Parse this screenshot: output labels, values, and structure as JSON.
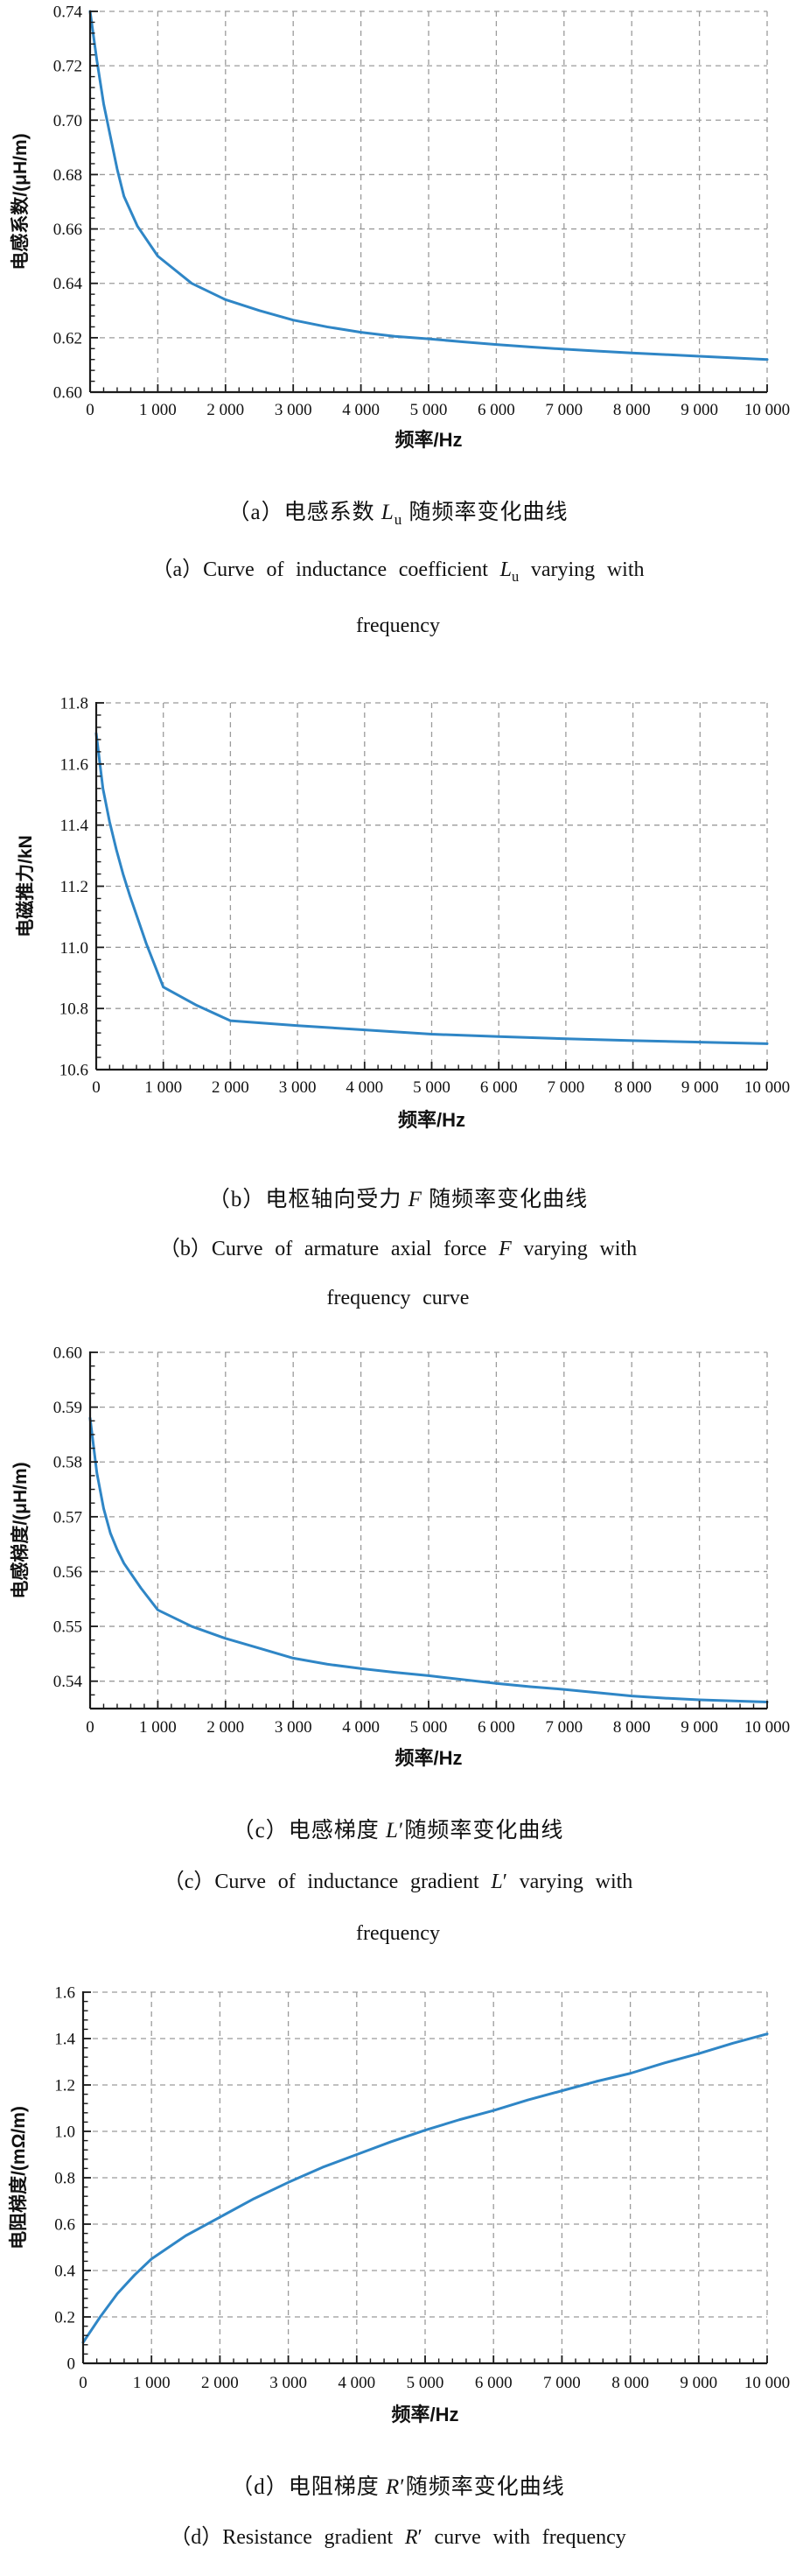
{
  "colors": {
    "line": "#2f86c6",
    "grid": "#9b9b9b",
    "axis": "#1a1a1a",
    "text": "#111111",
    "background": "#ffffff"
  },
  "chart_data": [
    {
      "id": "a",
      "type": "line",
      "title_zh": "（a）电感系数 Lu 随频率变化曲线",
      "title_en": "（a）Curve of inductance coefficient Lu varying with frequency",
      "xlabel": "频率/Hz",
      "ylabel": "电感系数/(μH/m)",
      "xlim": [
        0,
        10000
      ],
      "ylim": [
        0.6,
        0.74
      ],
      "grid": "dashed",
      "legend": "none",
      "xticks": [
        0,
        1000,
        2000,
        3000,
        4000,
        5000,
        6000,
        7000,
        8000,
        9000,
        10000
      ],
      "xtick_labels": [
        "0",
        "1 000",
        "2 000",
        "3 000",
        "4 000",
        "5 000",
        "6 000",
        "7 000",
        "8 000",
        "9 000",
        "10 000"
      ],
      "yticks": [
        0.6,
        0.62,
        0.64,
        0.66,
        0.68,
        0.7,
        0.72,
        0.74
      ],
      "ytick_labels": [
        "0.60",
        "0.62",
        "0.64",
        "0.66",
        "0.68",
        "0.70",
        "0.72",
        "0.74"
      ],
      "x_minor_step": 200,
      "y_minor_step": 0.004,
      "x": [
        0,
        100,
        200,
        300,
        400,
        500,
        700,
        1000,
        1500,
        2000,
        2500,
        3000,
        3500,
        4000,
        4500,
        5000,
        5500,
        6000,
        6500,
        7000,
        7500,
        8000,
        8500,
        9000,
        9500,
        10000
      ],
      "y": [
        0.74,
        0.722,
        0.706,
        0.694,
        0.682,
        0.672,
        0.661,
        0.65,
        0.64,
        0.634,
        0.63,
        0.6265,
        0.624,
        0.622,
        0.6205,
        0.6196,
        0.6185,
        0.6175,
        0.6166,
        0.6158,
        0.6151,
        0.6144,
        0.6138,
        0.6132,
        0.6126,
        0.612
      ],
      "caption_zh": [
        {
          "t": "（a）电感系数 "
        },
        {
          "t": "L",
          "i": 1
        },
        {
          "t": "u",
          "s": 1
        },
        {
          "t": " 随频率变化曲线"
        }
      ],
      "caption_en_lines": [
        [
          {
            "t": "（a）Curve of inductance coefficient "
          },
          {
            "t": "L",
            "i": 1
          },
          {
            "t": "u",
            "s": 1
          },
          {
            "t": " varying with"
          }
        ],
        [
          {
            "t": "frequency"
          }
        ]
      ]
    },
    {
      "id": "b",
      "type": "line",
      "title_zh": "（b）电枢轴向受力 F 随频率变化曲线",
      "title_en": "（b）Curve of armature axial force F varying with frequency curve",
      "xlabel": "频率/Hz",
      "ylabel": "电磁推力/kN",
      "xlim": [
        0,
        10000
      ],
      "ylim": [
        10.6,
        11.8
      ],
      "grid": "dashed",
      "legend": "none",
      "xticks": [
        0,
        1000,
        2000,
        3000,
        4000,
        5000,
        6000,
        7000,
        8000,
        9000,
        10000
      ],
      "xtick_labels": [
        "0",
        "1 000",
        "2 000",
        "3 000",
        "4 000",
        "5 000",
        "6 000",
        "7 000",
        "8 000",
        "9 000",
        "10 000"
      ],
      "yticks": [
        10.6,
        10.8,
        11.0,
        11.2,
        11.4,
        11.6,
        11.8
      ],
      "ytick_labels": [
        "10.6",
        "10.8",
        "11.0",
        "11.2",
        "11.4",
        "11.6",
        "11.8"
      ],
      "x_minor_step": 200,
      "y_minor_step": 0.04,
      "x": [
        0,
        100,
        200,
        300,
        400,
        500,
        750,
        1000,
        1500,
        2000,
        3000,
        4000,
        5000,
        6000,
        7000,
        8000,
        9000,
        10000
      ],
      "y": [
        11.7,
        11.52,
        11.41,
        11.32,
        11.24,
        11.17,
        11.01,
        10.87,
        10.81,
        10.76,
        10.744,
        10.73,
        10.716,
        10.708,
        10.701,
        10.695,
        10.69,
        10.685
      ],
      "caption_zh": [
        {
          "t": "（b）电枢轴向受力 "
        },
        {
          "t": "F",
          "i": 1
        },
        {
          "t": " 随频率变化曲线"
        }
      ],
      "caption_en_lines": [
        [
          {
            "t": "（b）Curve of armature axial force "
          },
          {
            "t": "F",
            "i": 1
          },
          {
            "t": " varying with"
          }
        ],
        [
          {
            "t": "frequency curve"
          }
        ]
      ]
    },
    {
      "id": "c",
      "type": "line",
      "title_zh": "（c）电感梯度 L′随频率变化曲线",
      "title_en": "（c）Curve of inductance gradient L′ varying with frequency",
      "xlabel": "频率/Hz",
      "ylabel": "电感梯度/(μH/m)",
      "xlim": [
        0,
        10000
      ],
      "ylim": [
        0.535,
        0.6
      ],
      "grid": "dashed",
      "legend": "none",
      "xticks": [
        0,
        1000,
        2000,
        3000,
        4000,
        5000,
        6000,
        7000,
        8000,
        9000,
        10000
      ],
      "xtick_labels": [
        "0",
        "1 000",
        "2 000",
        "3 000",
        "4 000",
        "5 000",
        "6 000",
        "7 000",
        "8 000",
        "9 000",
        "10 000"
      ],
      "yticks": [
        0.54,
        0.55,
        0.56,
        0.57,
        0.58,
        0.59,
        0.6
      ],
      "ytick_labels": [
        "0.54",
        "0.55",
        "0.56",
        "0.57",
        "0.58",
        "0.59",
        "0.60"
      ],
      "x_minor_step": 200,
      "y_minor_step": 0.0025,
      "x": [
        0,
        100,
        200,
        300,
        400,
        500,
        750,
        1000,
        1500,
        2000,
        2500,
        3000,
        3500,
        4000,
        4500,
        5000,
        5500,
        6000,
        6500,
        7000,
        7500,
        8000,
        8500,
        9000,
        9500,
        10000
      ],
      "y": [
        0.588,
        0.578,
        0.5715,
        0.567,
        0.564,
        0.5615,
        0.557,
        0.553,
        0.55,
        0.5478,
        0.546,
        0.5442,
        0.5431,
        0.5423,
        0.5416,
        0.541,
        0.5403,
        0.5396,
        0.539,
        0.5385,
        0.5379,
        0.5373,
        0.5369,
        0.5366,
        0.5364,
        0.5362
      ],
      "caption_zh": [
        {
          "t": "（c）电感梯度 "
        },
        {
          "t": "L",
          "i": 1
        },
        {
          "t": "′"
        },
        {
          "t": "随频率变化曲线"
        }
      ],
      "caption_en_lines": [
        [
          {
            "t": "（c）Curve of inductance gradient "
          },
          {
            "t": "L",
            "i": 1
          },
          {
            "t": "′"
          },
          {
            "t": " varying with"
          }
        ],
        [
          {
            "t": "frequency"
          }
        ]
      ]
    },
    {
      "id": "d",
      "type": "line",
      "title_zh": "（d）电阻梯度 R′随频率变化曲线",
      "title_en": "（d）Resistance gradient R′ curve with frequency",
      "xlabel": "频率/Hz",
      "ylabel": "电阻梯度/(mΩ/m)",
      "xlim": [
        0,
        10000
      ],
      "ylim": [
        0,
        1.6
      ],
      "grid": "dashed",
      "legend": "none",
      "xticks": [
        0,
        1000,
        2000,
        3000,
        4000,
        5000,
        6000,
        7000,
        8000,
        9000,
        10000
      ],
      "xtick_labels": [
        "0",
        "1 000",
        "2 000",
        "3 000",
        "4 000",
        "5 000",
        "6 000",
        "7 000",
        "8 000",
        "9 000",
        "10 000"
      ],
      "yticks": [
        0,
        0.2,
        0.4,
        0.6,
        0.8,
        1.0,
        1.2,
        1.4,
        1.6
      ],
      "ytick_labels": [
        "0",
        "0.2",
        "0.4",
        "0.6",
        "0.8",
        "1.0",
        "1.2",
        "1.4",
        "1.6"
      ],
      "x_minor_step": 200,
      "y_minor_step": 0.04,
      "x": [
        0,
        250,
        500,
        750,
        1000,
        1500,
        2000,
        2500,
        3000,
        3500,
        4000,
        4500,
        5000,
        5500,
        6000,
        6500,
        7000,
        7500,
        8000,
        8500,
        9000,
        9500,
        10000
      ],
      "y": [
        0.09,
        0.2,
        0.3,
        0.38,
        0.45,
        0.55,
        0.63,
        0.71,
        0.78,
        0.845,
        0.9,
        0.955,
        1.005,
        1.05,
        1.09,
        1.135,
        1.175,
        1.215,
        1.25,
        1.295,
        1.335,
        1.38,
        1.42
      ],
      "caption_zh": [
        {
          "t": "（d）电阻梯度 "
        },
        {
          "t": "R",
          "i": 1
        },
        {
          "t": "′"
        },
        {
          "t": "随频率变化曲线"
        }
      ],
      "caption_en_lines": [
        [
          {
            "t": "（d）Resistance gradient "
          },
          {
            "t": "R",
            "i": 1
          },
          {
            "t": "′"
          },
          {
            "t": " curve with frequency"
          }
        ]
      ]
    }
  ]
}
